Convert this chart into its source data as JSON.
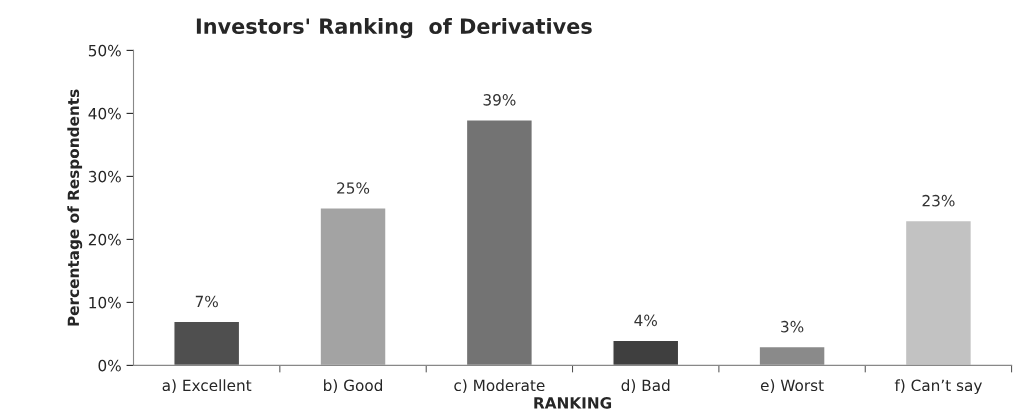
{
  "chart_data": {
    "type": "bar",
    "title": "Investors' Ranking  of Derivatives",
    "xlabel": "RANKING",
    "ylabel": "Percentage of Respondents",
    "categories": [
      "a) Excellent",
      "b) Good",
      "c) Moderate",
      "d) Bad",
      "e) Worst",
      "f) Can’t say"
    ],
    "values": [
      7,
      25,
      39,
      4,
      3,
      23
    ],
    "value_labels": [
      "7%",
      "25%",
      "39%",
      "4%",
      "3%",
      "23%"
    ],
    "colors": [
      "#4f4f4f",
      "#a3a3a3",
      "#737373",
      "#3f3f3f",
      "#8a8a8a",
      "#c2c2c2"
    ],
    "ylim": [
      0,
      50
    ],
    "yticks": [
      {
        "value": 0,
        "label": "0%"
      },
      {
        "value": 10,
        "label": "10%"
      },
      {
        "value": 20,
        "label": "20%"
      },
      {
        "value": 30,
        "label": "30%"
      },
      {
        "value": 40,
        "label": "40%"
      },
      {
        "value": 50,
        "label": "50%"
      }
    ],
    "grid": false,
    "legend": false
  }
}
